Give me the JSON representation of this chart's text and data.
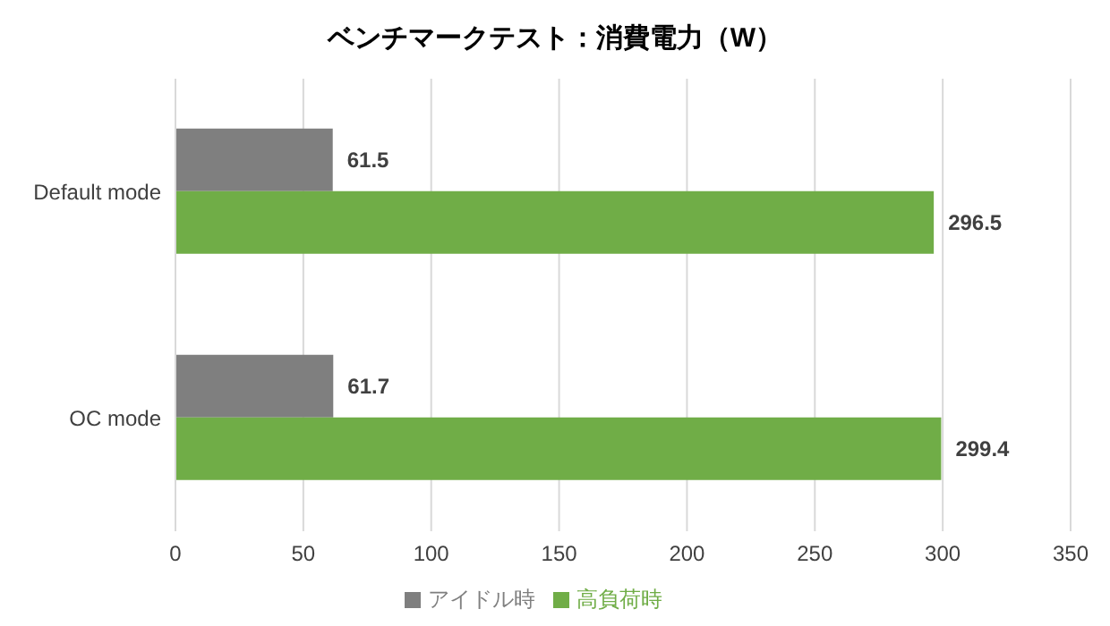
{
  "chart_data": {
    "type": "bar",
    "orientation": "horizontal",
    "title": "ベンチマークテスト：消費電力（W）",
    "categories": [
      "Default mode",
      "OC mode"
    ],
    "series": [
      {
        "name": "アイドル時",
        "color": "#7f7f7f",
        "values": [
          61.5,
          61.7
        ]
      },
      {
        "name": "高負荷時",
        "color": "#70ad47",
        "values": [
          296.5,
          299.4
        ]
      }
    ],
    "xlim": [
      0,
      350
    ],
    "xticks": [
      0,
      50,
      100,
      150,
      200,
      250,
      300,
      350
    ],
    "grid": "x",
    "legend": "bottom",
    "data_labels": true
  }
}
